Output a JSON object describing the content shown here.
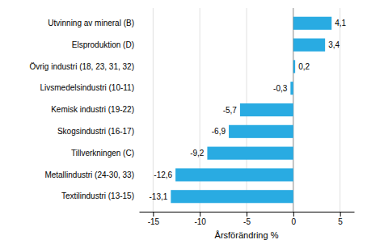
{
  "chart_data": {
    "type": "bar",
    "orientation": "horizontal",
    "categories": [
      "Textilindustri (13-15)",
      "Metallindustri (24-30, 33)",
      "Tillverkningen (C)",
      "Skogsindustri (16-17)",
      "Kemisk industri (19-22)",
      "Livsmedelsindustri (10-11)",
      "Övrig industri (18, 23, 31, 32)",
      "Elsproduktion (D)",
      "Utvinning av mineral (B)"
    ],
    "values": [
      -13.1,
      -12.6,
      -9.2,
      -6.9,
      -5.7,
      -0.3,
      0.2,
      3.4,
      4.1
    ],
    "value_labels": [
      "-13,1",
      "-12,6",
      "-9,2",
      "-6,9",
      "-5,7",
      "-0,3",
      "0,2",
      "3,4",
      "4,1"
    ],
    "data_labels": true,
    "color": "#29ABE2",
    "xlabel": "Årsförändring %",
    "xlim": [
      -16.5,
      6.5
    ],
    "xticks": [
      -15,
      -10,
      -5,
      0,
      5
    ],
    "grid": true
  }
}
